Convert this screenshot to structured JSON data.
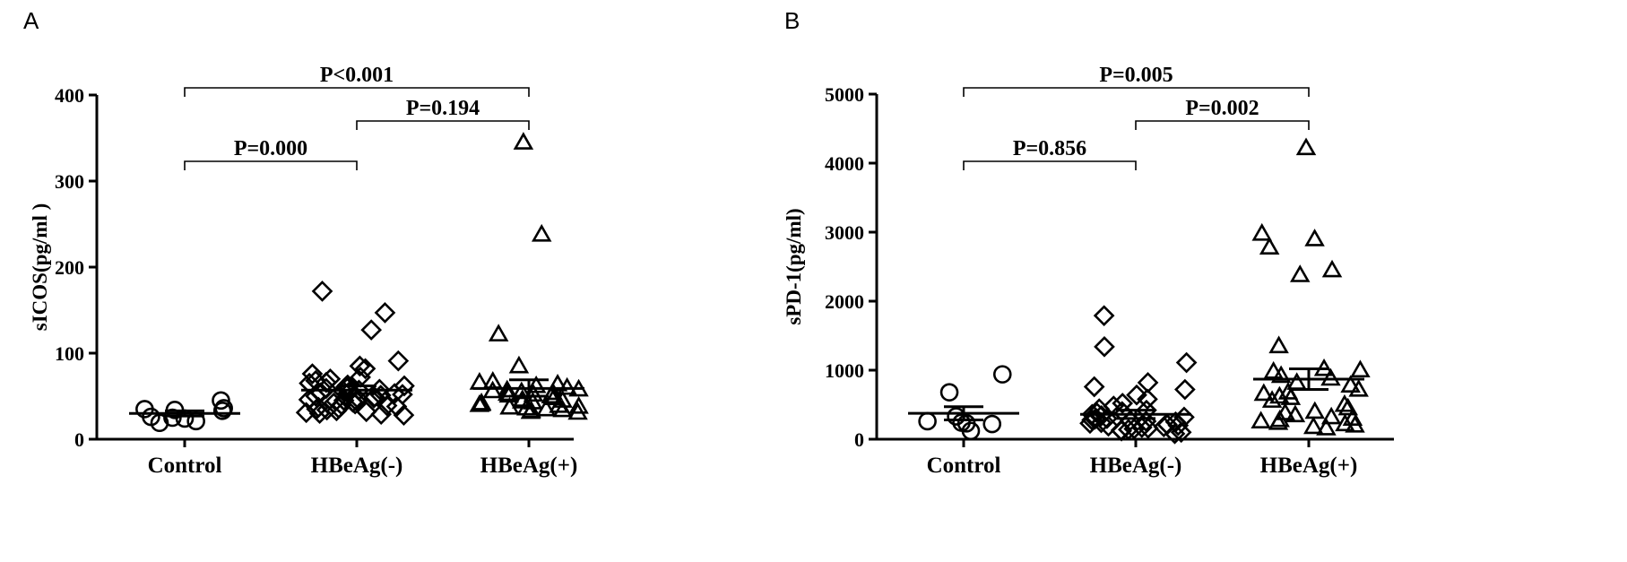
{
  "chart_data": [
    {
      "type": "scatter",
      "panel": "A",
      "ylabel": "sICOS(pg/ml )",
      "ylim": [
        0,
        400
      ],
      "yticks": [
        0,
        100,
        200,
        300,
        400
      ],
      "categories": [
        "Control",
        "HBeAg(-)",
        "HBeAg(+)"
      ],
      "series": [
        {
          "category": "Control",
          "marker": "circle",
          "mean": 30,
          "sem": [
            27,
            33
          ],
          "values": [
            45,
            36,
            35,
            34,
            33,
            26,
            25,
            24,
            21,
            19
          ]
        },
        {
          "category": "HBeAg(-)",
          "marker": "diamond",
          "mean": 57,
          "sem": [
            53,
            62
          ],
          "values": [
            172,
            147,
            127,
            91,
            85,
            82,
            76,
            72,
            70,
            68,
            66,
            65,
            63,
            62,
            61,
            60,
            59,
            58,
            57,
            56,
            55,
            54,
            53,
            52,
            51,
            50,
            49,
            48,
            47,
            46,
            45,
            44,
            43,
            42,
            41,
            40,
            39,
            38,
            37,
            36,
            35,
            34,
            33,
            32,
            31,
            30,
            29,
            28
          ]
        },
        {
          "category": "HBeAg(+)",
          "marker": "triangle",
          "mean": 59,
          "sem": [
            50,
            69
          ],
          "values": [
            345,
            238,
            122,
            85,
            67,
            66,
            64,
            62,
            60,
            58,
            57,
            56,
            55,
            54,
            53,
            52,
            51,
            50,
            48,
            46,
            45,
            44,
            43,
            42,
            41,
            40,
            39,
            38,
            37,
            36,
            35,
            34,
            33,
            32,
            31
          ]
        }
      ],
      "comparisons": [
        {
          "from": "Control",
          "to": "HBeAg(-)",
          "label": "P=0.000",
          "level": 1
        },
        {
          "from": "HBeAg(-)",
          "to": "HBeAg(+)",
          "label": "P=0.194",
          "level": 2
        },
        {
          "from": "Control",
          "to": "HBeAg(+)",
          "label": "P<0.001",
          "level": 3
        }
      ]
    },
    {
      "type": "scatter",
      "panel": "B",
      "ylabel": "sPD-1(pg/ml)",
      "ylim": [
        0,
        5000
      ],
      "yticks": [
        0,
        1000,
        2000,
        3000,
        4000,
        5000
      ],
      "categories": [
        "Control",
        "HBeAg(-)",
        "HBeAg(+)"
      ],
      "series": [
        {
          "category": "Control",
          "marker": "circle",
          "mean": 375,
          "sem": [
            280,
            470
          ],
          "values": [
            940,
            680,
            330,
            260,
            240,
            230,
            220,
            120
          ]
        },
        {
          "category": "HBeAg(-)",
          "marker": "diamond",
          "mean": 360,
          "sem": [
            300,
            420
          ],
          "values": [
            1790,
            1340,
            1110,
            820,
            760,
            720,
            640,
            580,
            520,
            480,
            440,
            420,
            400,
            380,
            360,
            340,
            320,
            300,
            290,
            280,
            270,
            260,
            250,
            240,
            230,
            220,
            210,
            200,
            190,
            180,
            170,
            160,
            150,
            140,
            130,
            120,
            100,
            80
          ]
        },
        {
          "category": "HBeAg(+)",
          "marker": "triangle",
          "mean": 870,
          "sem": [
            720,
            1020
          ],
          "values": [
            4220,
            2980,
            2900,
            2780,
            2450,
            2380,
            1350,
            1020,
            1000,
            980,
            920,
            880,
            820,
            780,
            720,
            680,
            660,
            620,
            600,
            560,
            500,
            450,
            400,
            380,
            350,
            320,
            300,
            280,
            260,
            240,
            220,
            200,
            180,
            160
          ]
        }
      ],
      "comparisons": [
        {
          "from": "Control",
          "to": "HBeAg(-)",
          "label": "P=0.856",
          "level": 1
        },
        {
          "from": "HBeAg(-)",
          "to": "HBeAg(+)",
          "label": "P=0.002",
          "level": 2
        },
        {
          "from": "Control",
          "to": "HBeAg(+)",
          "label": "P=0.005",
          "level": 3
        }
      ]
    }
  ]
}
